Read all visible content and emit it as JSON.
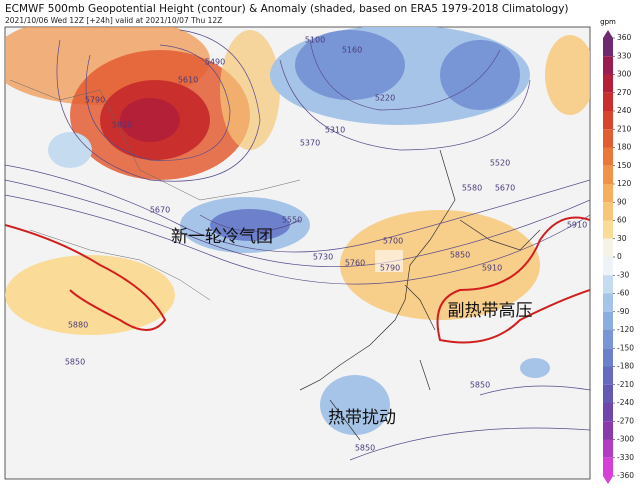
{
  "header": {
    "title": "ECMWF 500mb Geopotential Height (contour) & Anomaly (shaded, based on ERA5 1979-2018 Climatology)",
    "subtitle": "2021/10/06 Wed 12Z [+24h] valid at 2021/10/07 Thu 12Z"
  },
  "annotations": [
    "新一轮冷气团",
    "副热带高压",
    "热带扰动"
  ],
  "contour_labels": [
    5790,
    5820,
    5490,
    5610,
    5100,
    5160,
    5220,
    5310,
    5370,
    5670,
    5550,
    5520,
    5580,
    5670,
    5700,
    5730,
    5760,
    5790,
    5850,
    5910,
    5910,
    5880,
    5850,
    5850,
    5850
  ],
  "colorbar": {
    "unit": "gpm",
    "ticks": [
      360,
      330,
      300,
      270,
      240,
      210,
      180,
      150,
      120,
      90,
      60,
      30,
      0,
      -30,
      -60,
      -90,
      -120,
      -150,
      -180,
      -210,
      -240,
      -270,
      -300,
      -330,
      -360
    ],
    "colors": [
      "#6e2a6e",
      "#9b1d4f",
      "#b42038",
      "#c9302d",
      "#d8452f",
      "#e35d33",
      "#ea773b",
      "#f09347",
      "#f4ae5c",
      "#f7c777",
      "#fadc98",
      "#f5f2e6",
      "#eef3f8",
      "#c5dbef",
      "#a6c4e7",
      "#8badde",
      "#7896d5",
      "#6c80cc",
      "#646bc0",
      "#6459b4",
      "#6f47aa",
      "#8a3aab",
      "#b23bc2",
      "#d640d8"
    ]
  }
}
